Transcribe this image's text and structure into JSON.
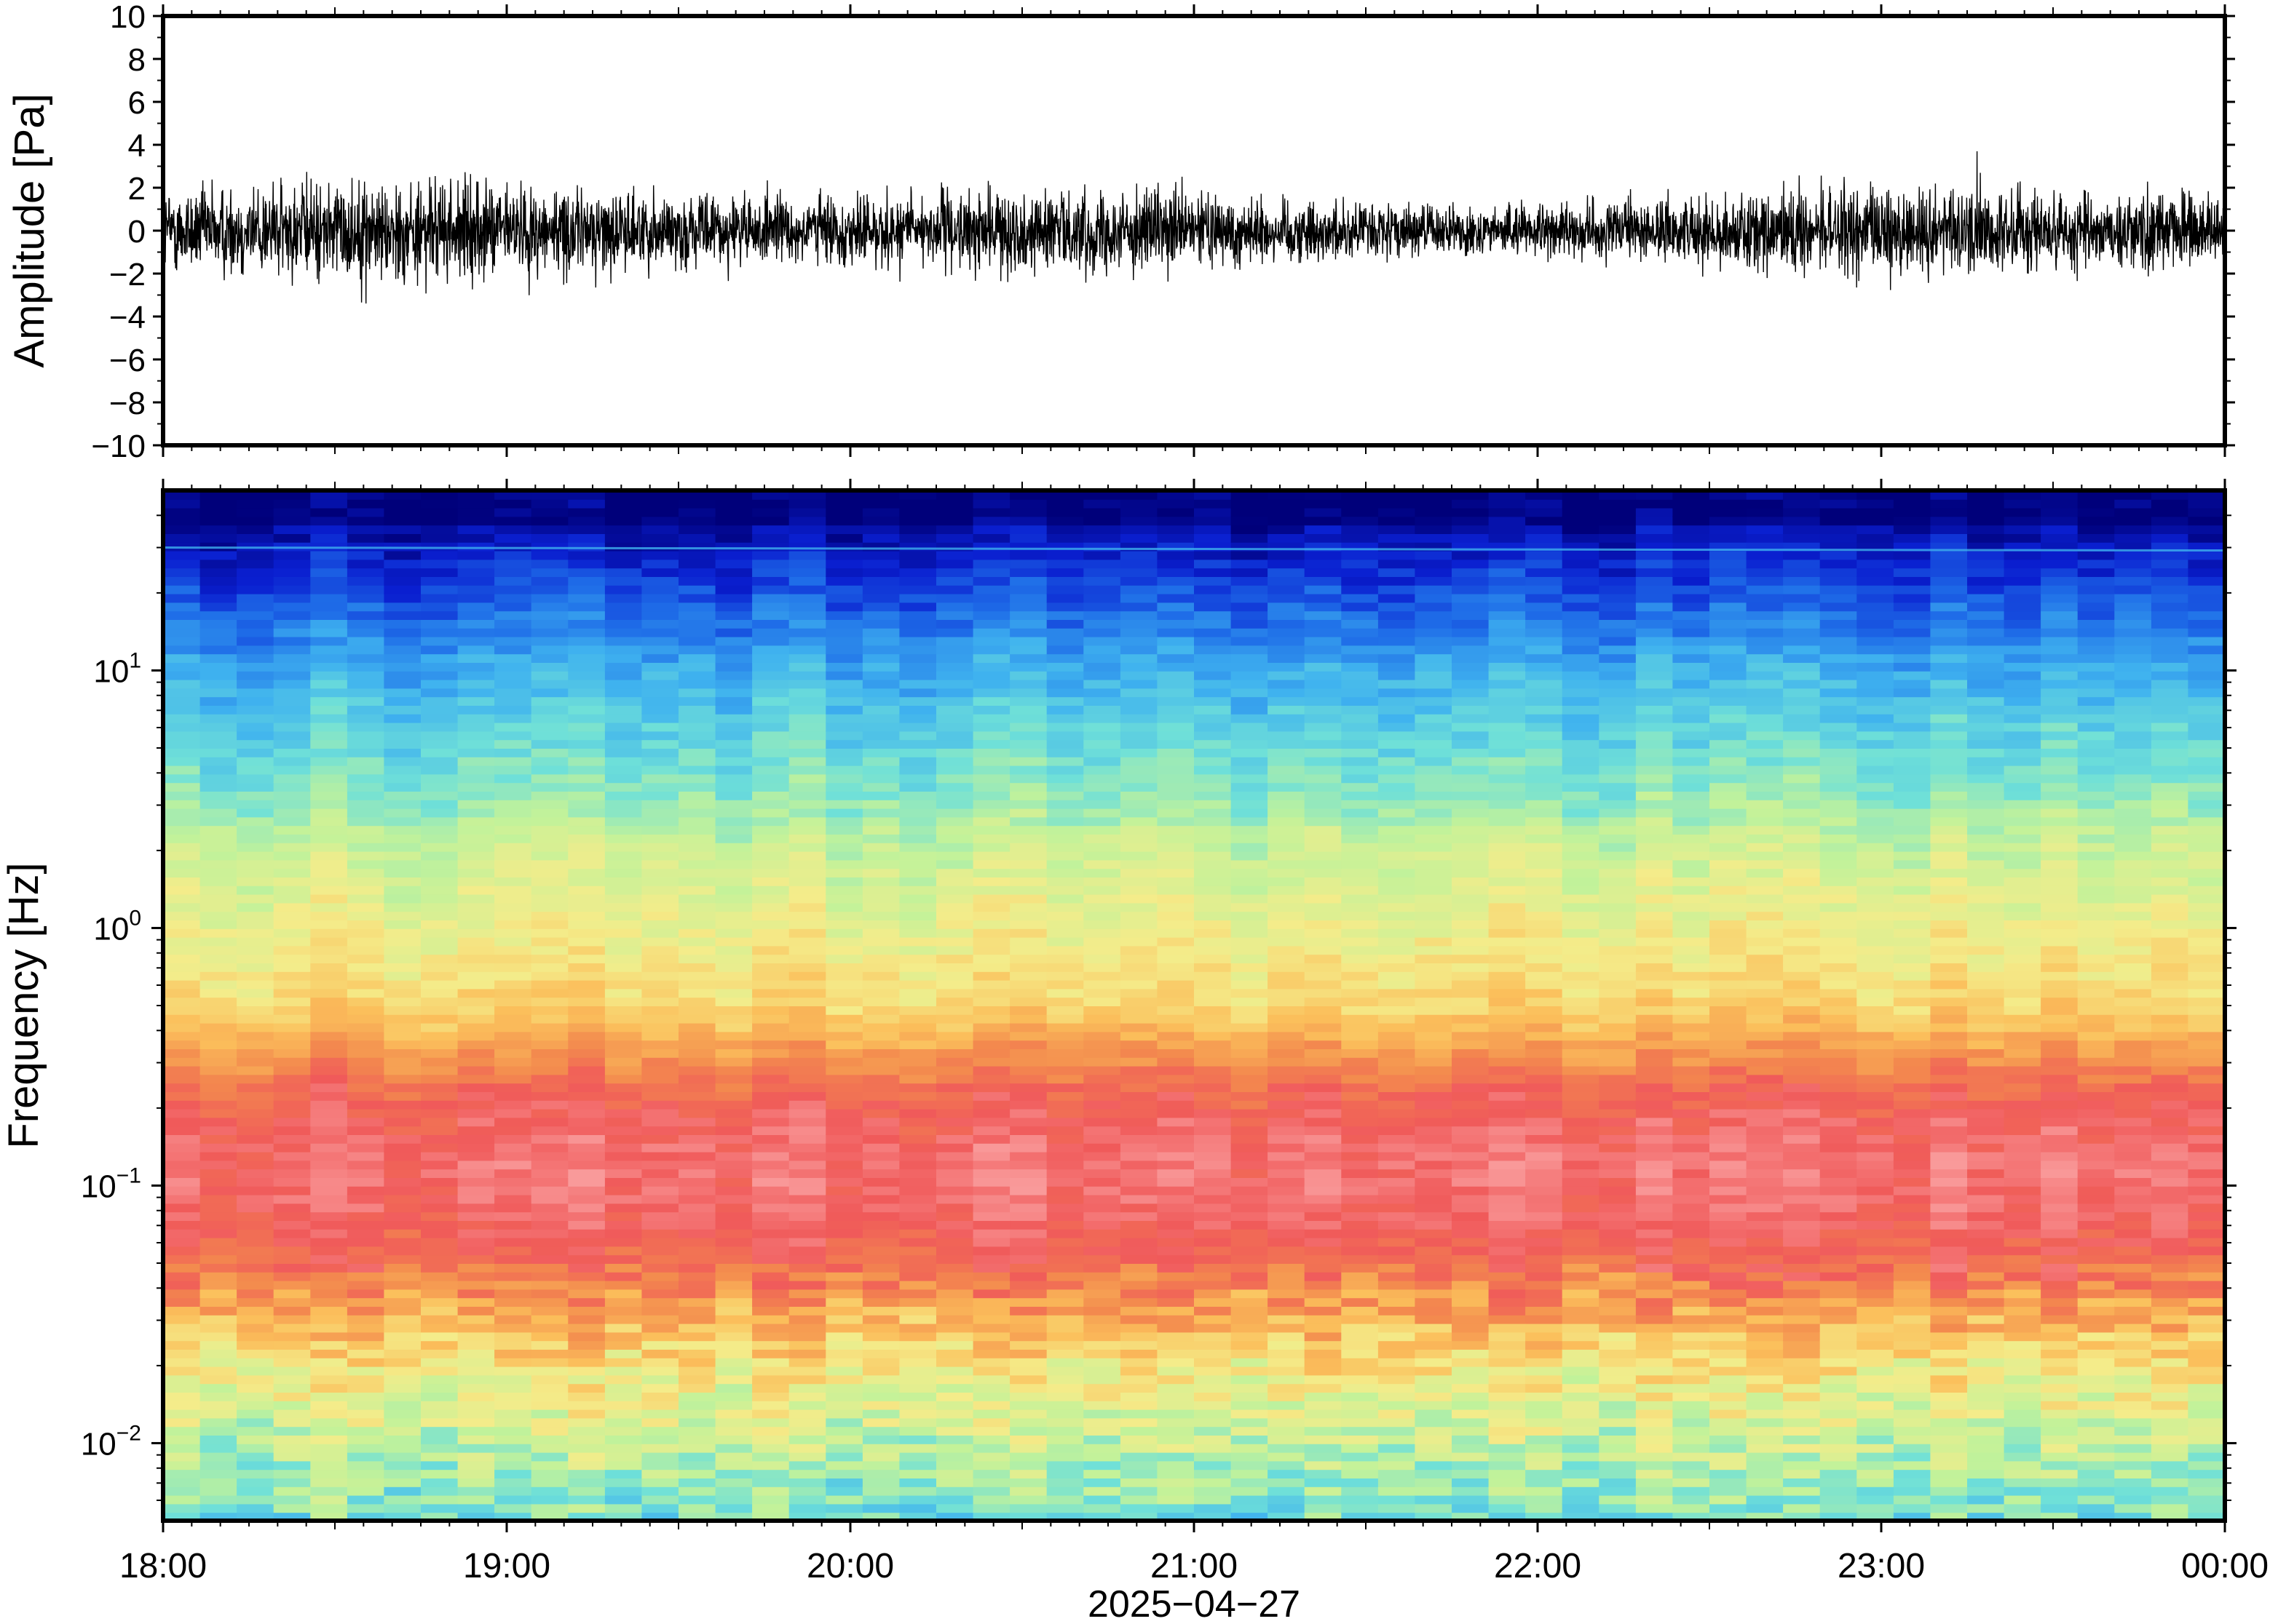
{
  "chart_data": [
    {
      "type": "line",
      "ylabel": "Amplitude [Pa]",
      "ylim": [
        -10,
        10
      ],
      "yticks": [
        "10",
        "8",
        "6",
        "4",
        "2",
        "0",
        "−2",
        "−4",
        "−6",
        "−8",
        "−10"
      ],
      "yticks_values": [
        10,
        8,
        6,
        4,
        2,
        0,
        -2,
        -4,
        -6,
        -8,
        -10
      ],
      "x_range": [
        "18:00",
        "00:00"
      ],
      "signal": {
        "description_of_values": "pressure waveform",
        "typical_range": [
          -2,
          2
        ],
        "peak_min": -4,
        "peak_max": 3.7,
        "color": "#000000"
      },
      "grid": false
    },
    {
      "type": "heatmap",
      "ylabel": "Frequency [Hz]",
      "yscale": "log",
      "ylim": [
        0.005,
        50
      ],
      "yticks": [
        {
          "base": "10",
          "exp": "1",
          "value": 10
        },
        {
          "base": "10",
          "exp": "0",
          "value": 1
        },
        {
          "base": "10",
          "exp": "−1",
          "value": 0.1
        },
        {
          "base": "10",
          "exp": "−2",
          "value": 0.01
        }
      ],
      "colormap": [
        "#00007a",
        "#0a1fd0",
        "#1f6ee8",
        "#3fb2ef",
        "#6fe0d8",
        "#c2f29a",
        "#f4ec8a",
        "#fbbf5b",
        "#f38a4e",
        "#f05a5a",
        "#f99a9a"
      ],
      "grid": false
    }
  ],
  "x_axis": {
    "tick_labels": [
      "18:00",
      "19:00",
      "20:00",
      "21:00",
      "22:00",
      "23:00",
      "00:00"
    ],
    "date_label": "2025−04−27"
  }
}
